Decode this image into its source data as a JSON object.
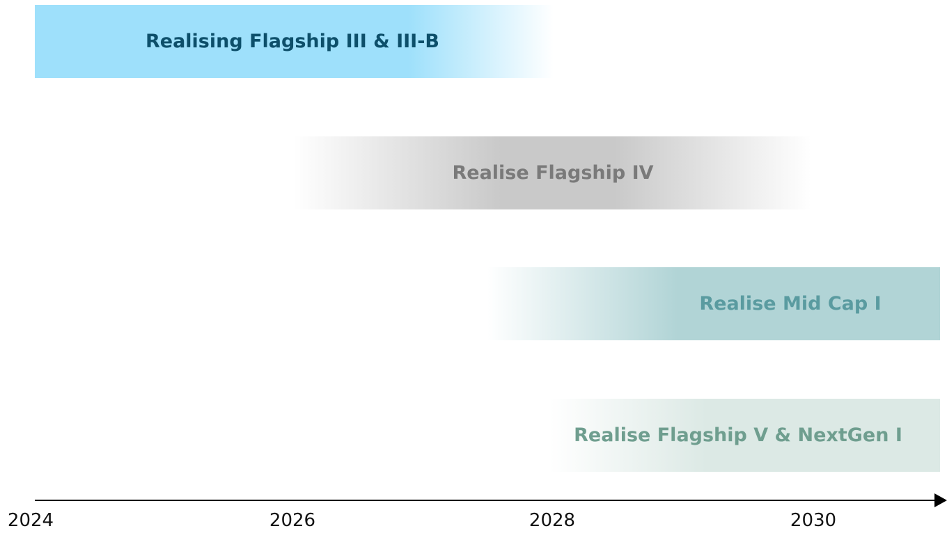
{
  "timeline": {
    "bars": [
      {
        "label": "Realising Flagship III & III-B"
      },
      {
        "label": "Realise Flagship IV"
      },
      {
        "label": "Realise Mid Cap I"
      },
      {
        "label": "Realise Flagship V & NextGen I"
      }
    ],
    "years": [
      "2024",
      "2026",
      "2028",
      "2030"
    ]
  }
}
